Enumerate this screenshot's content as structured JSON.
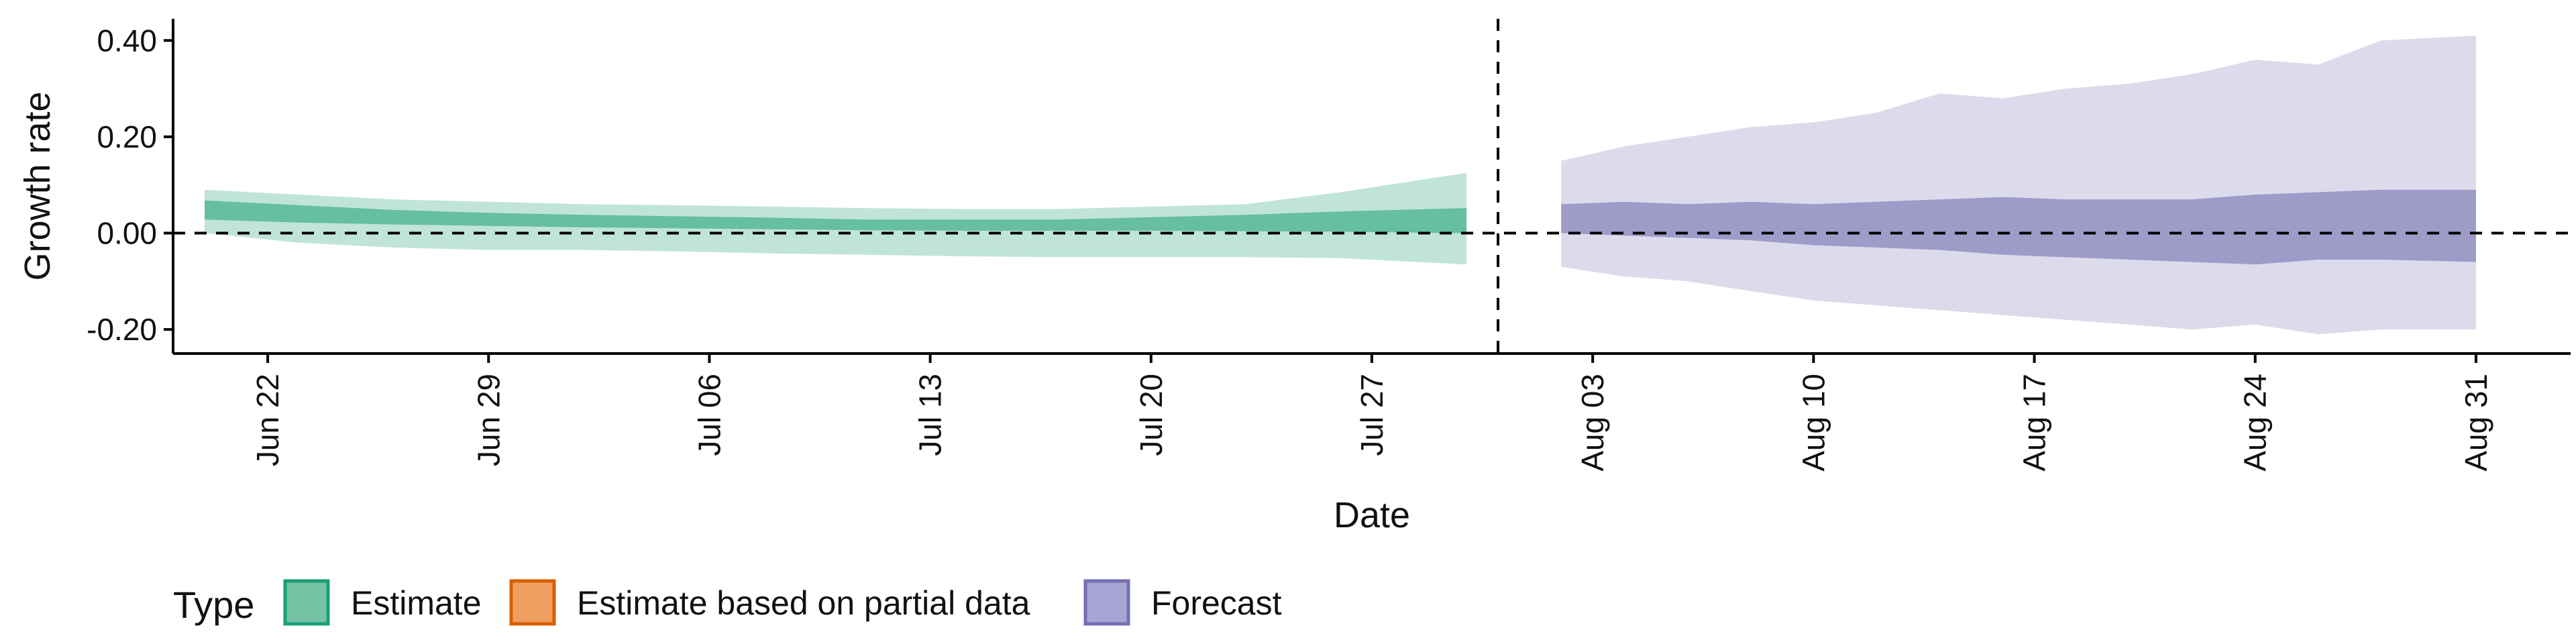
{
  "chart_data": {
    "type": "area",
    "xlabel": "Date",
    "ylabel": "Growth rate",
    "xlim": [
      "2020-06-19",
      "2020-09-03"
    ],
    "ylim": [
      -0.25,
      0.445
    ],
    "y_ticks": [
      -0.2,
      0.0,
      0.2,
      0.4
    ],
    "y_tick_labels": [
      "-0.20",
      "0.00",
      "0.20",
      "0.40"
    ],
    "x_ticks": [
      "2020-06-22",
      "2020-06-29",
      "2020-07-06",
      "2020-07-13",
      "2020-07-20",
      "2020-07-27",
      "2020-08-03",
      "2020-08-10",
      "2020-08-17",
      "2020-08-24",
      "2020-08-31"
    ],
    "x_tick_labels": [
      "Jun 22",
      "Jun 29",
      "Jul 06",
      "Jul 13",
      "Jul 20",
      "Jul 27",
      "Aug 03",
      "Aug 10",
      "Aug 17",
      "Aug 24",
      "Aug 31"
    ],
    "reference_lines": {
      "horizontal_y": 0.0,
      "vertical_date": "2020-07-31",
      "style": "dashed"
    },
    "grid": false,
    "legend": {
      "title": "Type",
      "position": "bottom-left",
      "entries": [
        {
          "label": "Estimate",
          "fill": "#75c2a4",
          "stroke": "#1b9e77"
        },
        {
          "label": "Estimate based on partial data",
          "fill": "#eda062",
          "stroke": "#d95f02"
        },
        {
          "label": "Forecast",
          "fill": "#a7a3d3",
          "stroke": "#7570b3"
        }
      ]
    },
    "series": [
      {
        "name": "Estimate",
        "color": "#1b9e77",
        "outer_band_opacity": 0.28,
        "inner_band_opacity": 0.55,
        "x": [
          "2020-06-20",
          "2020-06-23",
          "2020-06-26",
          "2020-06-29",
          "2020-07-02",
          "2020-07-05",
          "2020-07-08",
          "2020-07-11",
          "2020-07-14",
          "2020-07-17",
          "2020-07-20",
          "2020-07-23",
          "2020-07-26",
          "2020-07-30"
        ],
        "outer_upper": [
          0.09,
          0.08,
          0.07,
          0.065,
          0.06,
          0.058,
          0.055,
          0.052,
          0.05,
          0.05,
          0.055,
          0.06,
          0.085,
          0.125
        ],
        "inner_upper": [
          0.068,
          0.058,
          0.048,
          0.042,
          0.038,
          0.035,
          0.032,
          0.028,
          0.028,
          0.028,
          0.033,
          0.038,
          0.045,
          0.052
        ],
        "inner_lower": [
          0.028,
          0.022,
          0.018,
          0.015,
          0.012,
          0.01,
          0.008,
          0.006,
          0.005,
          0.005,
          0.005,
          0.004,
          0.003,
          0.0
        ],
        "outer_lower": [
          0.0,
          -0.02,
          -0.03,
          -0.035,
          -0.035,
          -0.038,
          -0.042,
          -0.045,
          -0.048,
          -0.05,
          -0.05,
          -0.05,
          -0.052,
          -0.065
        ]
      },
      {
        "name": "Forecast",
        "color": "#7570b3",
        "outer_band_opacity": 0.25,
        "inner_band_opacity": 0.6,
        "x": [
          "2020-08-02",
          "2020-08-04",
          "2020-08-06",
          "2020-08-08",
          "2020-08-10",
          "2020-08-12",
          "2020-08-14",
          "2020-08-16",
          "2020-08-18",
          "2020-08-20",
          "2020-08-22",
          "2020-08-24",
          "2020-08-26",
          "2020-08-28",
          "2020-08-31"
        ],
        "outer_upper": [
          0.15,
          0.18,
          0.2,
          0.22,
          0.23,
          0.25,
          0.29,
          0.28,
          0.3,
          0.31,
          0.33,
          0.36,
          0.35,
          0.4,
          0.41
        ],
        "inner_upper": [
          0.06,
          0.065,
          0.06,
          0.065,
          0.06,
          0.065,
          0.07,
          0.075,
          0.07,
          0.07,
          0.07,
          0.08,
          0.085,
          0.09,
          0.09
        ],
        "inner_lower": [
          0.0,
          -0.005,
          -0.01,
          -0.015,
          -0.025,
          -0.03,
          -0.035,
          -0.045,
          -0.05,
          -0.055,
          -0.06,
          -0.065,
          -0.055,
          -0.055,
          -0.06
        ],
        "outer_lower": [
          -0.07,
          -0.09,
          -0.1,
          -0.12,
          -0.14,
          -0.15,
          -0.16,
          -0.17,
          -0.18,
          -0.19,
          -0.2,
          -0.19,
          -0.21,
          -0.2,
          -0.2
        ]
      }
    ]
  }
}
